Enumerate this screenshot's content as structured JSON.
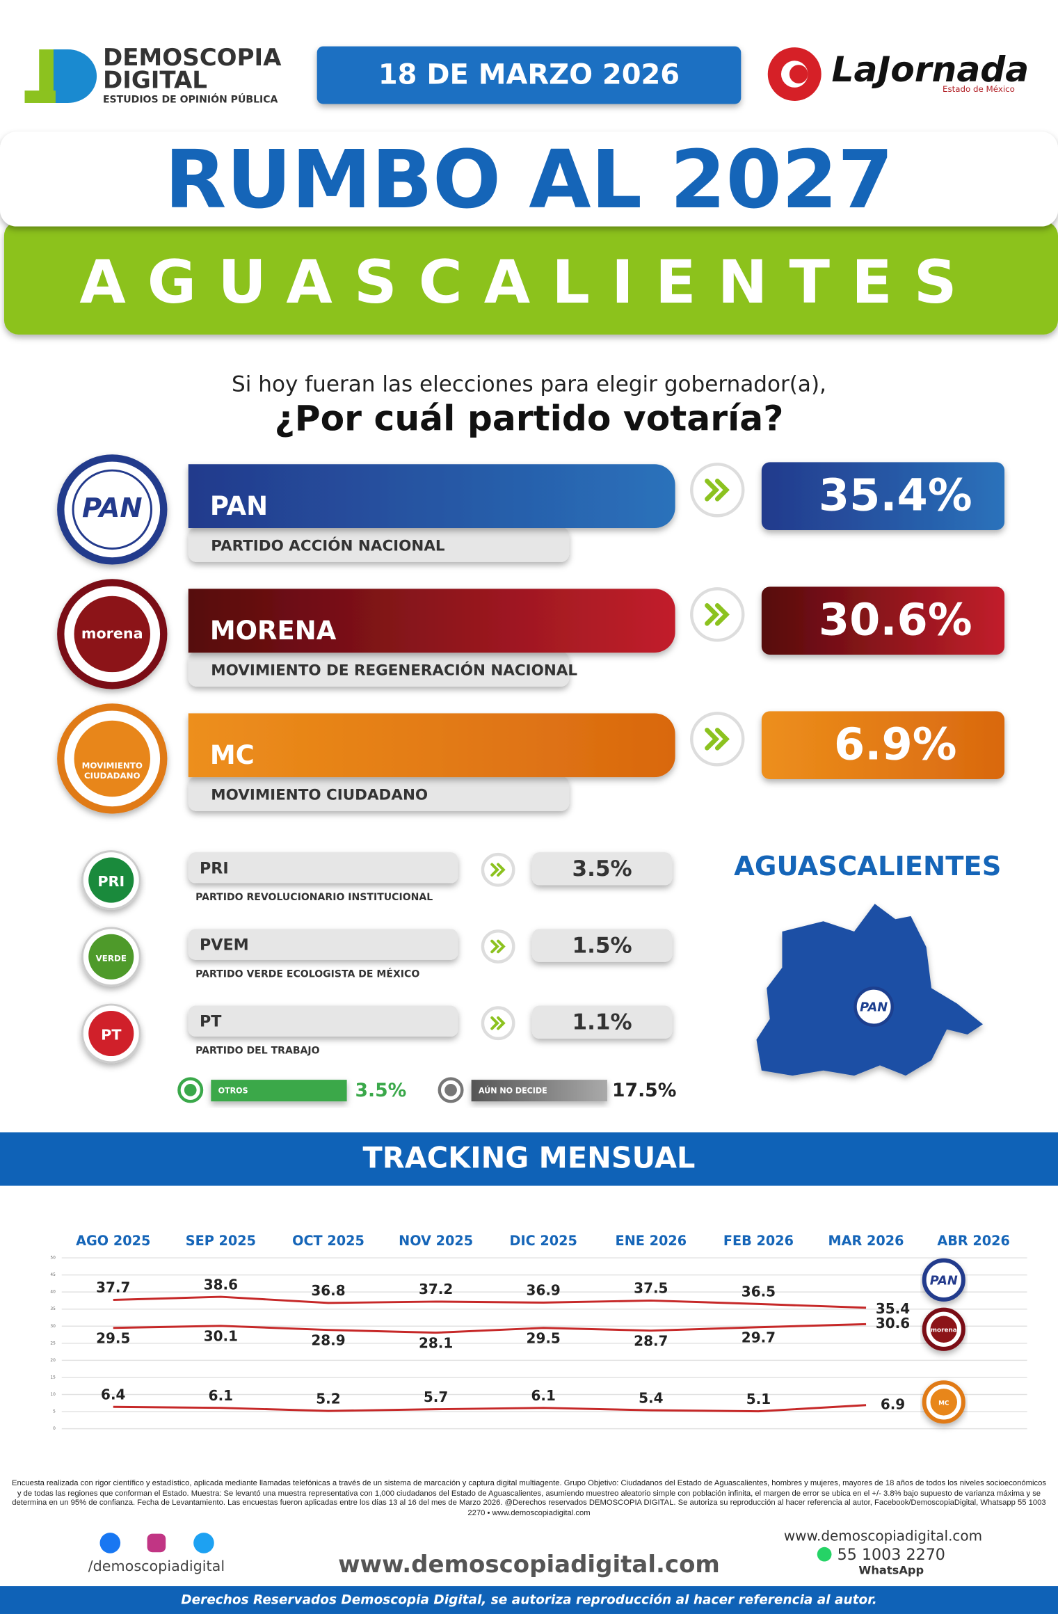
{
  "header": {
    "brand": "DEMOSCOPIA",
    "brand_2": "DIGITAL",
    "tagline": "ESTUDIOS DE OPINIÓN PÚBLICA",
    "date": "18 DE MARZO 2026",
    "partner": "LaJornada",
    "partner_region": "Estado de México"
  },
  "title": "RUMBO AL 2027",
  "state": "AGUASCALIENTES",
  "question": {
    "intro": "Si hoy fueran las elecciones para elegir gobernador(a),",
    "main": "¿Por cuál partido votaría?"
  },
  "main_parties": [
    {
      "logo": [
        "PAN"
      ],
      "abbr": "PAN",
      "name": "PARTIDO ACCIÓN NACIONAL",
      "result": "35.4%"
    },
    {
      "logo": [
        "morena"
      ],
      "abbr": "MORENA",
      "name": "MOVIMIENTO DE REGENERACIÓN NACIONAL",
      "result": "30.6%"
    },
    {
      "logo": [
        "MOVIMIENTO",
        "CIUDADANO"
      ],
      "abbr": "MC",
      "name": "MOVIMIENTO CIUDADANO",
      "result": "6.9%"
    }
  ],
  "minor_parties": [
    {
      "logo": "PRI",
      "abbr": "PRI",
      "name": "PARTIDO REVOLUCIONARIO INSTITUCIONAL",
      "result": "3.5%"
    },
    {
      "logo": "VERDE",
      "abbr": "PVEM",
      "name": "PARTIDO VERDE ECOLOGISTA DE MÉXICO",
      "result": "1.5%"
    },
    {
      "logo": "PT",
      "abbr": "PT",
      "name": "PARTIDO DEL TRABAJO",
      "result": "1.1%"
    }
  ],
  "others": {
    "label": "OTROS",
    "result": "3.5%"
  },
  "undecided": {
    "label": "AÚN NO DECIDE",
    "result": "17.5%"
  },
  "map": {
    "title": "AGUASCALIENTES",
    "leader": "PAN"
  },
  "tracking": {
    "title": "TRACKING MENSUAL"
  },
  "chart_data": {
    "type": "line",
    "categories": [
      "AGO 2025",
      "SEP 2025",
      "OCT 2025",
      "NOV 2025",
      "DIC 2025",
      "ENE 2026",
      "FEB 2026",
      "MAR 2026",
      "ABR 2026"
    ],
    "series": [
      {
        "name": "PAN",
        "color": "#c62828",
        "values": [
          37.7,
          38.6,
          36.8,
          37.2,
          36.9,
          37.5,
          36.5,
          35.4,
          null
        ]
      },
      {
        "name": "morena",
        "color": "#c62828",
        "values": [
          29.5,
          30.1,
          28.9,
          28.1,
          29.5,
          28.7,
          29.7,
          30.6,
          null
        ]
      },
      {
        "name": "MC",
        "color": "#c62828",
        "values": [
          6.4,
          6.1,
          5.2,
          5.7,
          6.1,
          5.4,
          5.1,
          6.9,
          null
        ]
      }
    ],
    "ylim": [
      0,
      50
    ],
    "yticks": [
      0,
      5,
      10,
      15,
      20,
      25,
      30,
      35,
      40,
      45,
      50
    ],
    "grid": true
  },
  "footer": {
    "disclaimer": "Encuesta realizada con rigor científico y estadístico, aplicada mediante llamadas telefónicas a través de un sistema de marcación y captura digital multiagente. Grupo Objetivo: Ciudadanos del Estado de Aguascalientes, hombres y mujeres, mayores de 18 años de todos los niveles socioeconómicos y de todas las regiones que conforman el Estado. Muestra: Se levantó una muestra representativa con 1,000 ciudadanos del Estado de Aguascalientes, asumiendo muestreo aleatorio simple con población infinita, el margen de error se ubica en el +/- 3.8% bajo supuesto de varianza máxima y se determina en un 95% de confianza. Fecha de Levantamiento. Las encuestas fueron aplicadas entre los días 13 al 16 del mes de Marzo 2026. @Derechos reservados DEMOSCOPIA DIGITAL. Se autoriza su reproducción al hacer referencia al autor, Facebook/DemoscopiaDigital, Whatsapp 55 1003 2270 • www.demoscopiadigital.com",
    "social": "/demoscopiadigital",
    "website": "www.demoscopiadigital.com",
    "website_small": "www.demoscopiadigital.com",
    "phone": "55 1003 2270",
    "phone_app": "WhatsApp",
    "rights": "Derechos Reservados Demoscopia Digital, se autoriza reproducción al hacer referencia al autor."
  }
}
